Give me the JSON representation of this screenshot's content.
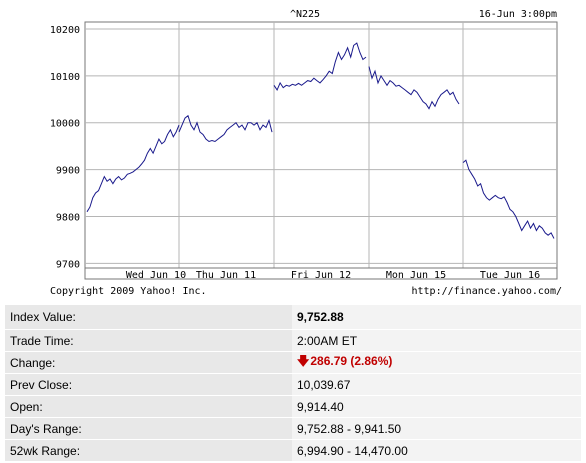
{
  "chart_data": {
    "type": "line",
    "title": "^N225",
    "timestamp": "16-Jun 3:00pm",
    "footer_left": "Copyright 2009 Yahoo! Inc.",
    "footer_right": "http://finance.yahoo.com/",
    "ylim": [
      9690,
      10215
    ],
    "y_ticks": [
      10200,
      10100,
      10000,
      9900,
      9800,
      9700
    ],
    "x_tick_labels": [
      "Wed Jun 10",
      "Thu Jun 11",
      "Fri Jun 12",
      "Mon Jun 15",
      "Tue Jun 16"
    ],
    "grid": true,
    "color": "#1a1a8c",
    "segments": [
      {
        "day": "Wed Jun 10",
        "values": [
          9810,
          9820,
          9840,
          9850,
          9855,
          9870,
          9885,
          9875,
          9880,
          9870,
          9880,
          9885,
          9878,
          9882,
          9890,
          9892,
          9895,
          9900,
          9905,
          9912,
          9920,
          9935,
          9945,
          9935,
          9950,
          9965,
          9955,
          9960,
          9975,
          9985,
          9970,
          9980,
          9995
        ]
      },
      {
        "day": "Thu Jun 11",
        "values": [
          9980,
          9995,
          10010,
          10015,
          9995,
          9985,
          10000,
          9980,
          9975,
          9965,
          9960,
          9962,
          9960,
          9965,
          9970,
          9975,
          9985,
          9990,
          9995,
          10000,
          9990,
          9995,
          9985,
          10000,
          10000,
          9995,
          10000,
          9985,
          9995,
          9990,
          10005,
          9980
        ]
      },
      {
        "day": "Fri Jun 12",
        "values": [
          10080,
          10070,
          10085,
          10075,
          10080,
          10078,
          10082,
          10080,
          10084,
          10080,
          10085,
          10090,
          10088,
          10095,
          10090,
          10085,
          10092,
          10100,
          10110,
          10105,
          10130,
          10150,
          10135,
          10145,
          10160,
          10140,
          10165,
          10170,
          10150,
          10135,
          10140
        ]
      },
      {
        "day": "Mon Jun 15",
        "values": [
          10120,
          10095,
          10110,
          10085,
          10100,
          10090,
          10080,
          10090,
          10085,
          10078,
          10080,
          10075,
          10070,
          10065,
          10060,
          10070,
          10065,
          10055,
          10045,
          10040,
          10030,
          10045,
          10035,
          10050,
          10060,
          10065,
          10070,
          10060,
          10065,
          10050,
          10040
        ]
      },
      {
        "day": "Tue Jun 16",
        "values": [
          9915,
          9920,
          9900,
          9890,
          9880,
          9865,
          9870,
          9850,
          9840,
          9835,
          9840,
          9845,
          9840,
          9838,
          9842,
          9830,
          9815,
          9810,
          9800,
          9785,
          9770,
          9780,
          9790,
          9775,
          9785,
          9770,
          9780,
          9775,
          9765,
          9760,
          9765,
          9753
        ]
      }
    ]
  },
  "stats": {
    "index_value": {
      "label": "Index Value:",
      "value": "9,752.88"
    },
    "trade_time": {
      "label": "Trade Time:",
      "value": "2:00AM ET"
    },
    "change": {
      "label": "Change:",
      "value": "286.79 (2.86%)",
      "direction": "down",
      "arrow_icon": "arrow-down-icon",
      "color": "#c00000"
    },
    "prev_close": {
      "label": "Prev Close:",
      "value": "10,039.67"
    },
    "open": {
      "label": "Open:",
      "value": "9,914.40"
    },
    "days_range": {
      "label": "Day's Range:",
      "value": "9,752.88 - 9,941.50"
    },
    "wk52_range": {
      "label": "52wk Range:",
      "value": "6,994.90 - 14,470.00"
    }
  }
}
